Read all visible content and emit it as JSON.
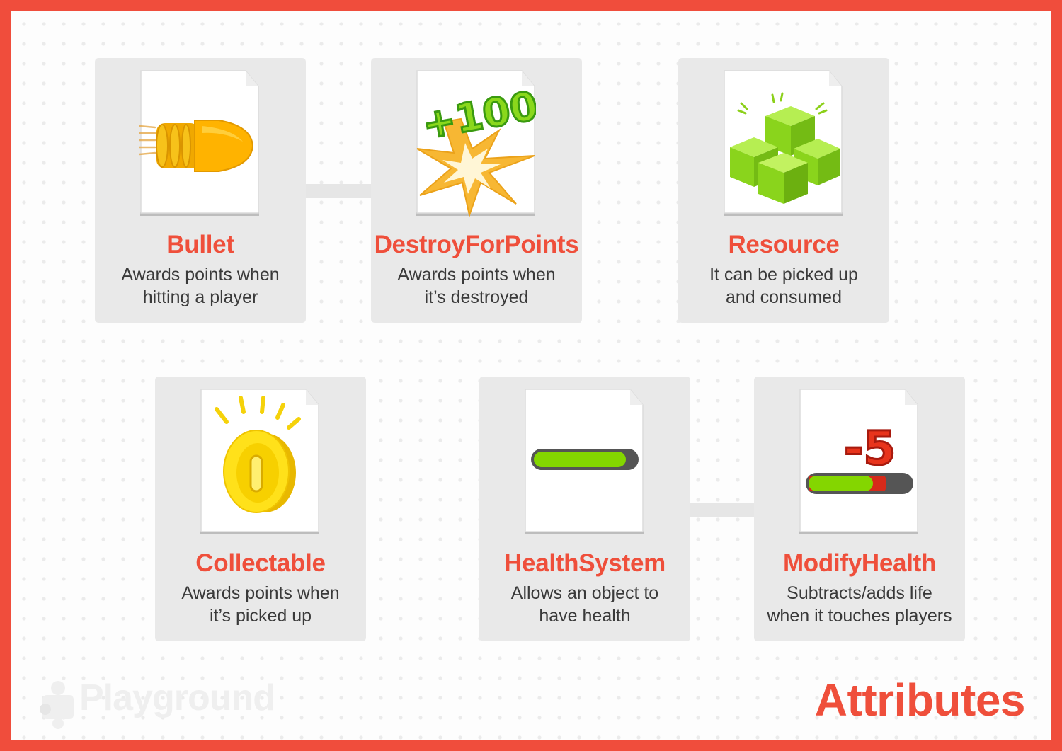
{
  "page": {
    "title": "Attributes",
    "logo_text": "Playground",
    "accent_color": "#ef4f3b",
    "frame_color": "#f04d3c"
  },
  "cards": [
    {
      "id": "bullet",
      "title": "Bullet",
      "description": "Awards points when\nhitting a player",
      "icon": "bullet-icon"
    },
    {
      "id": "destroy-for-points",
      "title": "DestroyForPoints",
      "description": "Awards points when\nit’s destroyed",
      "icon": "plus-100-explosion-icon",
      "badge": "+100"
    },
    {
      "id": "resource",
      "title": "Resource",
      "description": "It can be picked up\nand consumed",
      "icon": "green-cubes-icon"
    },
    {
      "id": "collectable",
      "title": "Collectable",
      "description": "Awards points when\nit’s picked up",
      "icon": "gold-coin-icon"
    },
    {
      "id": "health-system",
      "title": "HealthSystem",
      "description": "Allows an object to\nhave health",
      "icon": "health-bar-icon",
      "health_level": 0.9
    },
    {
      "id": "modify-health",
      "title": "ModifyHealth",
      "description": "Subtracts/adds life\nwhen it touches players",
      "icon": "health-damage-icon",
      "badge": "-5",
      "health_level": 0.63,
      "damage_level": 0.13
    }
  ],
  "connections": [
    {
      "from": "bullet",
      "to": "destroy-for-points"
    },
    {
      "from": "health-system",
      "to": "modify-health"
    }
  ]
}
